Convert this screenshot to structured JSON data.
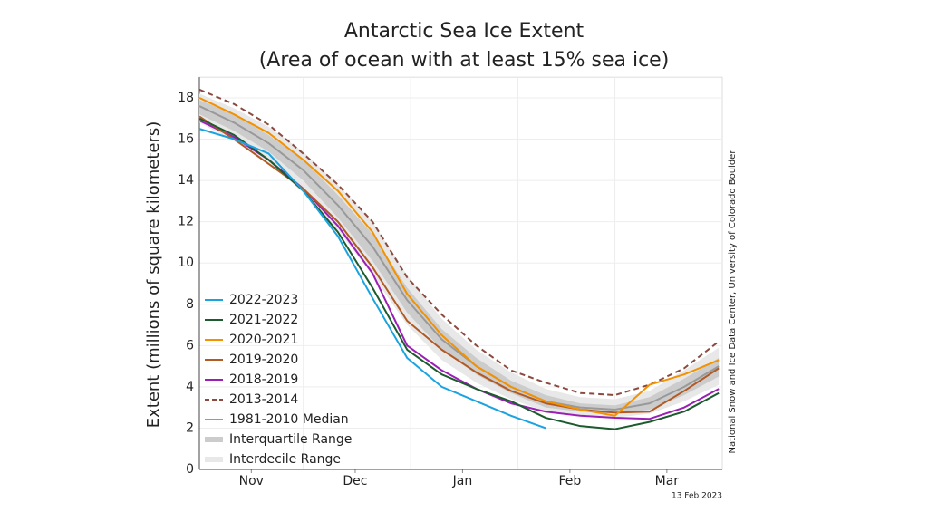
{
  "chart_data": {
    "type": "line",
    "title": "Antarctic Sea Ice Extent",
    "subtitle": "(Area of ocean with at least 15% sea ice)",
    "y_label": "Extent (millions of square kilometers)",
    "credit": "National Snow and Ice Data Center, University of Colorado Boulder",
    "date_note": "13 Feb 2023",
    "x": [
      0,
      10,
      20,
      30,
      40,
      50,
      60,
      70,
      80,
      90,
      100,
      110,
      120,
      130,
      140,
      150
    ],
    "xlim": [
      0,
      151
    ],
    "xticks": [
      {
        "value": 15,
        "label": "Nov"
      },
      {
        "value": 45,
        "label": "Dec"
      },
      {
        "value": 76,
        "label": "Jan"
      },
      {
        "value": 107,
        "label": "Feb"
      },
      {
        "value": 135,
        "label": "Mar"
      }
    ],
    "xgrid": [
      30,
      61,
      92,
      120
    ],
    "ylim": [
      0,
      19
    ],
    "yticks": [
      0,
      2,
      4,
      6,
      8,
      10,
      12,
      14,
      16,
      18
    ],
    "grid": true,
    "legend": "lower-left",
    "series": [
      {
        "name": "2022-2023",
        "color": "#1ba3e0",
        "values": [
          16.5,
          16.0,
          15.3,
          13.5,
          11.3,
          8.3,
          5.4,
          4.0,
          3.3,
          2.6,
          2.0,
          null,
          null,
          null,
          null,
          null
        ]
      },
      {
        "name": "2021-2022",
        "color": "#1c5b2e",
        "values": [
          17.0,
          16.2,
          15.0,
          13.5,
          11.5,
          8.8,
          5.8,
          4.6,
          3.9,
          3.3,
          2.5,
          2.1,
          1.95,
          2.3,
          2.8,
          3.7
        ]
      },
      {
        "name": "2020-2021",
        "color": "#f39200",
        "values": [
          18.0,
          17.2,
          16.3,
          15.0,
          13.5,
          11.5,
          8.5,
          6.5,
          5.0,
          4.0,
          3.3,
          2.9,
          2.6,
          4.1,
          4.6,
          5.3
        ]
      },
      {
        "name": "2019-2020",
        "color": "#b15a24",
        "values": [
          17.1,
          16.0,
          14.8,
          13.6,
          12.0,
          9.8,
          7.2,
          5.8,
          4.7,
          3.8,
          3.2,
          2.9,
          2.75,
          2.8,
          3.8,
          4.9
        ]
      },
      {
        "name": "2018-2019",
        "color": "#9b1fb5",
        "values": [
          16.9,
          16.1,
          15.0,
          13.6,
          11.8,
          9.5,
          6.0,
          4.8,
          3.9,
          3.2,
          2.8,
          2.6,
          2.5,
          2.45,
          3.0,
          3.9
        ]
      },
      {
        "name": "2013-2014",
        "color": "#8b4a3e",
        "dash": true,
        "values": [
          18.4,
          17.7,
          16.7,
          15.3,
          13.8,
          12.0,
          9.3,
          7.5,
          6.0,
          4.8,
          4.2,
          3.7,
          3.6,
          4.1,
          4.9,
          6.2
        ]
      },
      {
        "name": "1981-2010 Median",
        "color": "#999999",
        "values": [
          17.6,
          16.8,
          15.8,
          14.5,
          12.8,
          10.8,
          8.2,
          6.3,
          5.0,
          4.0,
          3.3,
          3.0,
          2.9,
          3.2,
          4.0,
          5.0
        ]
      }
    ],
    "bands": [
      {
        "name": "Interquartile Range",
        "color": "#cccccc",
        "lower": [
          17.2,
          16.4,
          15.4,
          14.0,
          12.2,
          10.1,
          7.6,
          5.8,
          4.6,
          3.7,
          3.0,
          2.8,
          2.7,
          2.9,
          3.6,
          4.5
        ],
        "upper": [
          17.9,
          17.2,
          16.2,
          15.0,
          13.3,
          11.4,
          8.8,
          6.8,
          5.4,
          4.3,
          3.6,
          3.2,
          3.1,
          3.5,
          4.4,
          5.4
        ]
      },
      {
        "name": "Interdecile Range",
        "color": "#e8e8e8",
        "lower": [
          16.8,
          15.9,
          14.9,
          13.4,
          11.6,
          9.4,
          7.0,
          5.3,
          4.2,
          3.4,
          2.8,
          2.6,
          2.5,
          2.7,
          3.3,
          4.1
        ],
        "upper": [
          18.2,
          17.5,
          16.6,
          15.4,
          13.8,
          12.0,
          9.4,
          7.3,
          5.8,
          4.7,
          3.9,
          3.5,
          3.4,
          3.8,
          4.8,
          5.9
        ]
      }
    ]
  }
}
